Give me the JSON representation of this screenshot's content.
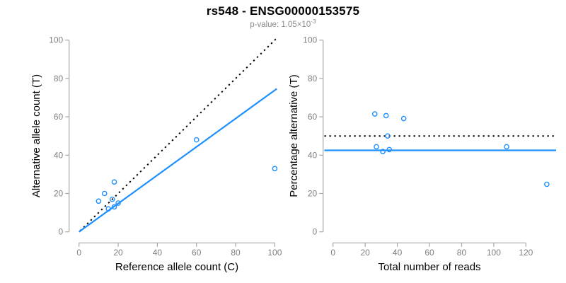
{
  "header": {
    "title": "rs548 - ENSG00000153575",
    "subtitle_text": "p-value: 1.05×10",
    "subtitle_exponent": "-3"
  },
  "colors": {
    "point_blue": "#1E90FF",
    "fit_line_blue": "#1E90FF",
    "dotted_line_black": "#000000",
    "axis_line_gray": "#a8a8a8",
    "tick_label_gray": "#7f7f7f",
    "axis_label_black": "#000000",
    "subtitle_gray": "#8a8a8a",
    "background": "#ffffff"
  },
  "chart_data": [
    {
      "type": "scatter",
      "panel": "left",
      "xlabel": "Reference allele count (C)",
      "ylabel": "Alternative allele count (T)",
      "xlim": [
        0,
        100
      ],
      "ylim": [
        0,
        100
      ],
      "xticks": [
        0,
        20,
        40,
        60,
        80,
        100
      ],
      "yticks": [
        0,
        20,
        40,
        60,
        80,
        100
      ],
      "grid": false,
      "legend": null,
      "points": [
        [
          10,
          16
        ],
        [
          13,
          20
        ],
        [
          18,
          26
        ],
        [
          17,
          17
        ],
        [
          15,
          12
        ],
        [
          18,
          13
        ],
        [
          20,
          15
        ],
        [
          60,
          48
        ],
        [
          100,
          33
        ]
      ],
      "lines": [
        {
          "name": "identity-line",
          "style": "dotted",
          "color": "black",
          "x1": 0.5,
          "y1": 0.5,
          "x2": 100.5,
          "y2": 100.5
        },
        {
          "name": "fit-line",
          "style": "solid",
          "color": "blue",
          "x1": 0,
          "y1": 0,
          "x2": 101,
          "y2": 74.6
        }
      ]
    },
    {
      "type": "scatter",
      "panel": "right",
      "xlabel": "Total number of reads",
      "ylabel": "Percentage alternative (T)",
      "xlim": [
        0,
        133
      ],
      "ylim": [
        0,
        100
      ],
      "xticks": [
        0,
        20,
        40,
        60,
        80,
        100,
        120
      ],
      "yticks": [
        0,
        20,
        40,
        60,
        80,
        100
      ],
      "grid": false,
      "legend": null,
      "points": [
        [
          26,
          61.5
        ],
        [
          33,
          60.6
        ],
        [
          44,
          59.1
        ],
        [
          34,
          50.0
        ],
        [
          27,
          44.4
        ],
        [
          31,
          41.9
        ],
        [
          35,
          42.9
        ],
        [
          108,
          44.4
        ],
        [
          133,
          24.8
        ]
      ],
      "lines": [
        {
          "name": "fifty-percent-line",
          "style": "dotted",
          "color": "black",
          "h": 50
        },
        {
          "name": "fit-line",
          "style": "solid",
          "color": "blue",
          "h": 42.5
        }
      ]
    }
  ]
}
